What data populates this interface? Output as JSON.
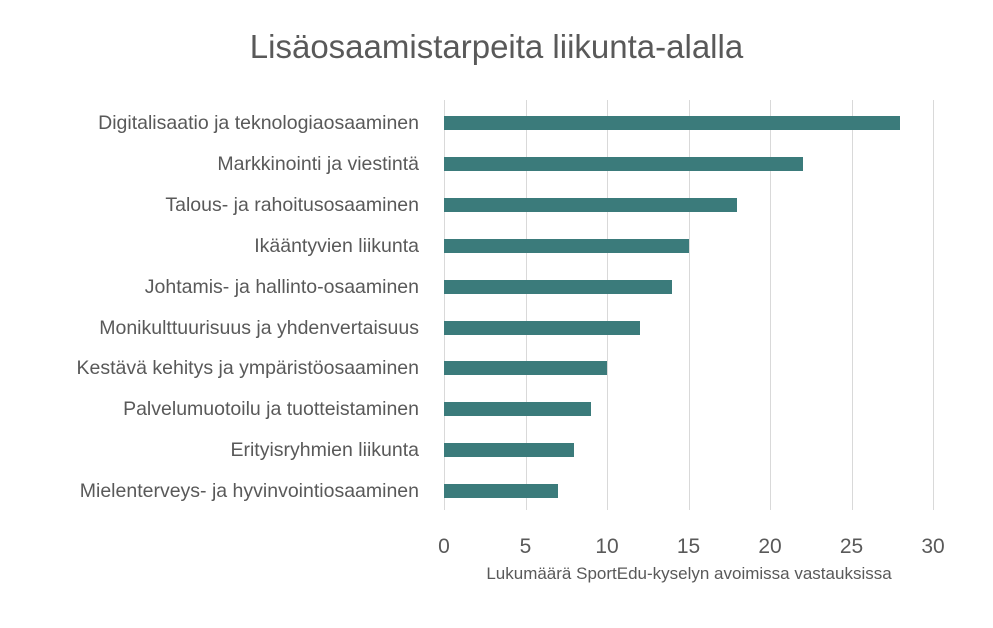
{
  "chart_data": {
    "type": "bar",
    "orientation": "horizontal",
    "title": "Lisäosaamistarpeita liikunta-alalla",
    "xlabel": "Lukumäärä SportEdu-kyselyn avoimissa vastauksissa",
    "ylabel": "",
    "xlim": [
      0,
      30
    ],
    "x_ticks": [
      "0",
      "5",
      "10",
      "15",
      "20",
      "25",
      "30"
    ],
    "grid": true,
    "legend": null,
    "bar_color": "#3b7b7b",
    "categories": [
      "Digitalisaatio ja teknologiaosaaminen",
      "Markkinointi ja viestintä",
      "Talous- ja rahoitusosaaminen",
      "Ikääntyvien liikunta",
      "Johtamis- ja hallinto-osaaminen",
      "Monikulttuurisuus ja yhdenvertaisuus",
      "Kestävä kehitys ja ympäristöosaaminen",
      "Palvelumuotoilu ja tuotteistaminen",
      "Erityisryhmien liikunta",
      "Mielenterveys- ja hyvinvointiosaaminen"
    ],
    "values": [
      28,
      22,
      18,
      15,
      14,
      12,
      10,
      9,
      8,
      7
    ]
  }
}
